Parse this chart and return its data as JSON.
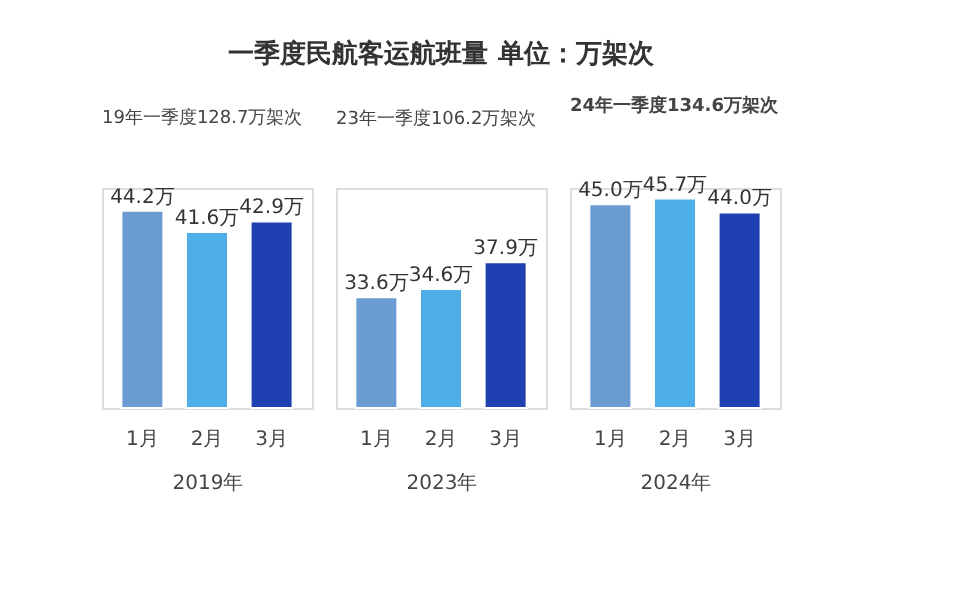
{
  "chart_data": [
    {
      "type": "bar",
      "title": "一季度民航客运航班量 单位：万架次",
      "subtitle": "19年一季度128.7万架次",
      "xlabel": "2019年",
      "categories": [
        "1月",
        "2月",
        "3月"
      ],
      "values": [
        44.2,
        41.6,
        42.9
      ],
      "colors": [
        "#6a9bd1",
        "#4eaee8",
        "#1f40b0"
      ],
      "value_labels": [
        "44.2万",
        "41.6万",
        "42.9万"
      ],
      "ylim": [
        20,
        47
      ],
      "tick_labels": "x",
      "grid": false
    },
    {
      "type": "bar",
      "subtitle": "23年一季度106.2万架次",
      "xlabel": "2023年",
      "categories": [
        "1月",
        "2月",
        "3月"
      ],
      "values": [
        33.6,
        34.6,
        37.9
      ],
      "colors": [
        "#6a9bd1",
        "#4eaee8",
        "#1f40b0"
      ],
      "value_labels": [
        "33.6万",
        "34.6万",
        "37.9万"
      ],
      "ylim": [
        20,
        47
      ],
      "tick_labels": "x",
      "grid": false
    },
    {
      "type": "bar",
      "subtitle": "24年一季度134.6万架次",
      "xlabel": "2024年",
      "categories": [
        "1月",
        "2月",
        "3月"
      ],
      "values": [
        45.0,
        45.7,
        44.0
      ],
      "colors": [
        "#6a9bd1",
        "#4eaee8",
        "#1f40b0"
      ],
      "value_labels": [
        "45.0万",
        "45.7万",
        "44.0万"
      ],
      "ylim": [
        20,
        47
      ],
      "tick_labels": "x",
      "grid": false
    }
  ]
}
